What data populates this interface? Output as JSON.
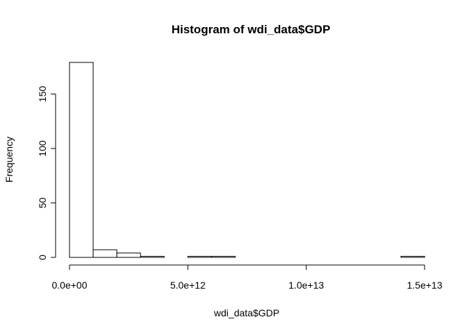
{
  "chart_data": {
    "type": "bar",
    "subtype": "histogram",
    "title": "Histogram of wdi_data$GDP",
    "xlabel": "wdi_data$GDP",
    "ylabel": "Frequency",
    "bin_width": 1000000000000.0,
    "bin_edges": [
      0,
      1000000000000.0,
      2000000000000.0,
      3000000000000.0,
      4000000000000.0,
      5000000000000.0,
      6000000000000.0,
      7000000000000.0,
      8000000000000.0,
      9000000000000.0,
      10000000000000.0,
      11000000000000.0,
      12000000000000.0,
      13000000000000.0,
      14000000000000.0,
      15000000000000.0
    ],
    "values": [
      179,
      7,
      4,
      1,
      0,
      1,
      1,
      0,
      0,
      0,
      0,
      0,
      0,
      0,
      1
    ],
    "xlim": [
      0,
      15000000000000.0
    ],
    "ylim": [
      0,
      179
    ],
    "x_ticks": [
      {
        "value": 0,
        "label": "0.0e+00"
      },
      {
        "value": 5000000000000.0,
        "label": "5.0e+12"
      },
      {
        "value": 10000000000000.0,
        "label": "1.0e+13"
      },
      {
        "value": 15000000000000.0,
        "label": "1.5e+13"
      }
    ],
    "y_ticks": [
      {
        "value": 0,
        "label": "0"
      },
      {
        "value": 50,
        "label": "50"
      },
      {
        "value": 100,
        "label": "100"
      },
      {
        "value": 150,
        "label": "150"
      }
    ],
    "grid": false,
    "legend": "none",
    "colors": {
      "bar_fill": "#ffffff",
      "bar_stroke": "#000000",
      "background": "#ffffff"
    }
  }
}
